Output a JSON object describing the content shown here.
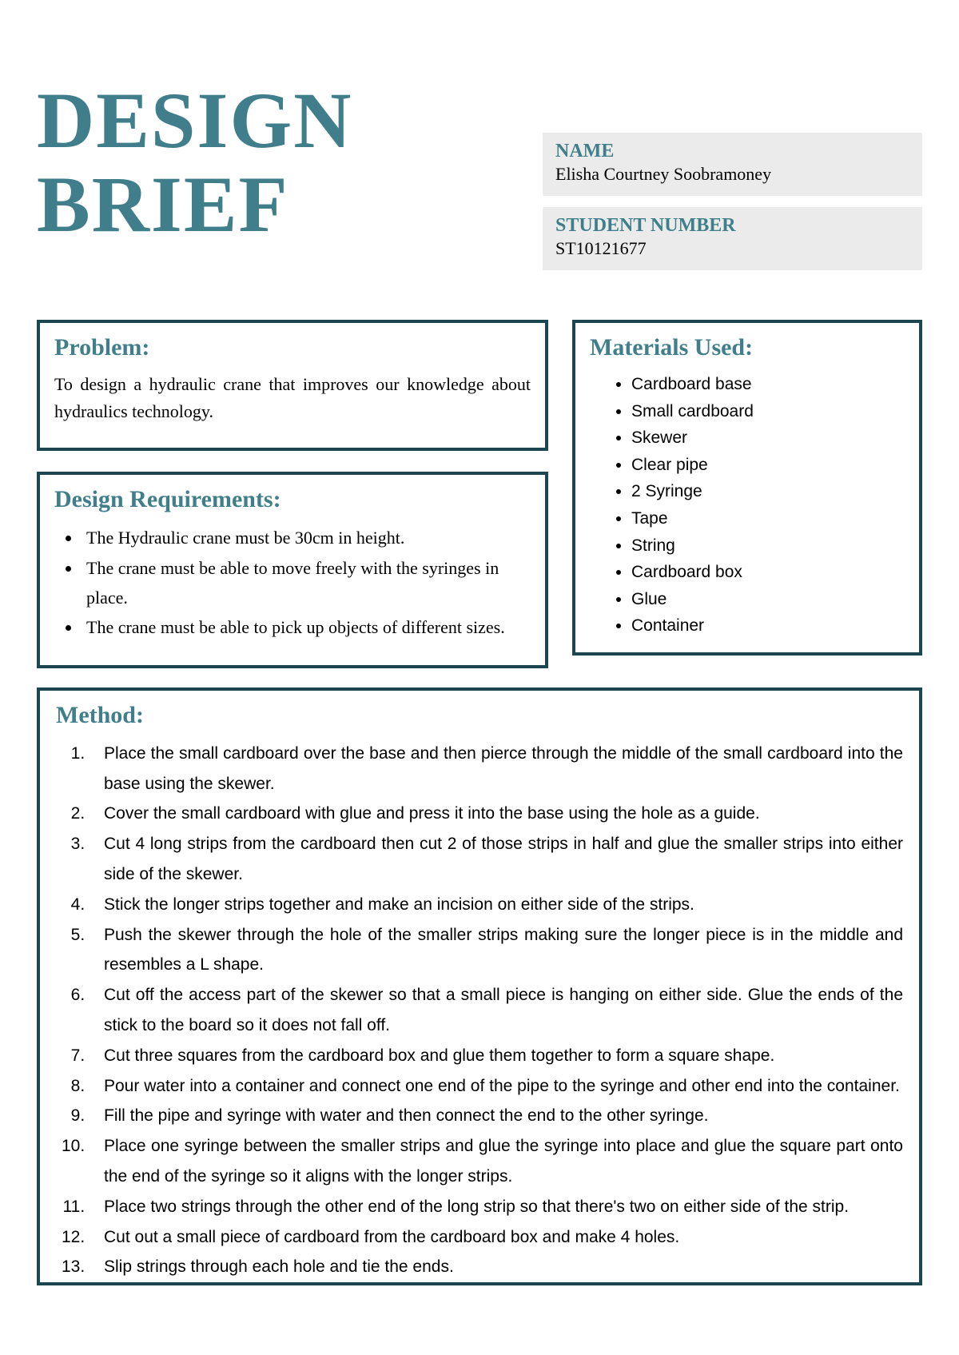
{
  "title": {
    "line1": "DESIGN",
    "line2": "BRIEF"
  },
  "info": {
    "name_label": "NAME",
    "name_value": "Elisha Courtney Soobramoney",
    "student_label": "STUDENT NUMBER",
    "student_value": "ST10121677"
  },
  "problem": {
    "heading": "Problem:",
    "text": "To design a hydraulic crane that improves our knowledge about hydraulics technology."
  },
  "requirements": {
    "heading": "Design Requirements:",
    "items": [
      "The Hydraulic crane must be 30cm in height.",
      "The crane must be able to move freely with the syringes in place.",
      "The crane must be able to pick up objects of different sizes."
    ]
  },
  "materials": {
    "heading": "Materials Used:",
    "items": [
      "Cardboard base",
      "Small cardboard",
      "Skewer",
      "Clear pipe",
      "2 Syringe",
      "Tape",
      "String",
      "Cardboard box",
      "Glue",
      "Container"
    ]
  },
  "method": {
    "heading": "Method:",
    "items": [
      "Place the small cardboard over the base and then pierce through the middle of the small cardboard into the base using the skewer.",
      "Cover the small cardboard with glue and press it into the base using the hole as a guide.",
      "Cut 4 long strips from the cardboard then cut 2 of those strips in half and glue the smaller strips into either side of the skewer.",
      "Stick the longer strips together and make an incision on either side of the strips.",
      "Push the skewer through the hole of the smaller strips making sure the longer piece is in the middle and resembles a L shape.",
      "Cut off the access part of the skewer so that a small piece is hanging on either side. Glue the ends of the stick to the board so it does not fall off.",
      "Cut three squares from the cardboard box and glue them together to form a square shape.",
      "Pour water into a container and connect one end of the pipe to the syringe and other end into the container.",
      "Fill the pipe and syringe with water and then connect the end to the other syringe.",
      "Place one syringe between the smaller strips and glue the syringe into place and glue the square part onto the end of the syringe so it aligns with the longer strips.",
      "Place two strings through the other end of the long strip so that there's two on either side of the strip.",
      "Cut out a small piece of cardboard from the cardboard box and make 4 holes.",
      "Slip strings through each hole and tie the ends."
    ]
  },
  "colors": {
    "accent": "#3f7e8a",
    "border": "#1d4750",
    "info_bg": "#ebebeb"
  }
}
